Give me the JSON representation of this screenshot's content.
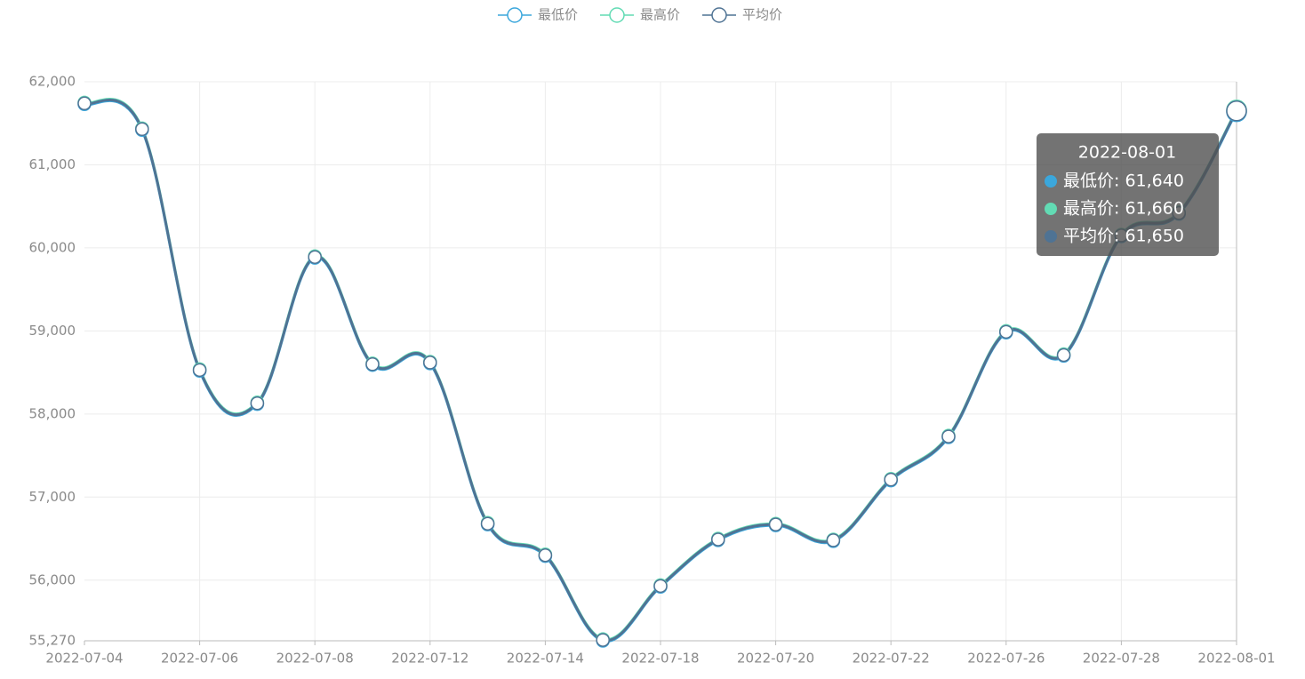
{
  "chart_data": {
    "type": "line",
    "categories": [
      "2022-07-04",
      null,
      "2022-07-06",
      null,
      "2022-07-08",
      null,
      "2022-07-12",
      null,
      "2022-07-14",
      null,
      "2022-07-18",
      null,
      "2022-07-20",
      null,
      "2022-07-22",
      null,
      "2022-07-26",
      null,
      "2022-07-28",
      null,
      "2022-08-01"
    ],
    "series": [
      {
        "name": "最低价",
        "color": "#3ba7dc",
        "values": [
          61730,
          61420,
          58520,
          58120,
          59880,
          58590,
          58610,
          56670,
          56290,
          55270,
          55920,
          56480,
          56660,
          56470,
          57200,
          57720,
          58980,
          58700,
          60140,
          60410,
          61640
        ]
      },
      {
        "name": "最高价",
        "color": "#62dbb4",
        "values": [
          61750,
          61440,
          58540,
          58140,
          59900,
          58610,
          58630,
          56690,
          56310,
          55290,
          55940,
          56500,
          56680,
          56490,
          57220,
          57740,
          59000,
          58720,
          60160,
          60430,
          61660
        ]
      },
      {
        "name": "平均价",
        "color": "#4f7394",
        "values": [
          61740,
          61430,
          58530,
          58130,
          59890,
          58600,
          58620,
          56680,
          56300,
          55280,
          55930,
          56490,
          56670,
          56480,
          57210,
          57730,
          58990,
          58710,
          60150,
          60420,
          61650
        ]
      }
    ],
    "ylim": [
      55270,
      62000
    ],
    "yticks": [
      {
        "value": 55270,
        "label": "55,270"
      },
      {
        "value": 56000,
        "label": "56,000"
      },
      {
        "value": 57000,
        "label": "57,000"
      },
      {
        "value": 58000,
        "label": "58,000"
      },
      {
        "value": 59000,
        "label": "59,000"
      },
      {
        "value": 60000,
        "label": "60,000"
      },
      {
        "value": 61000,
        "label": "61,000"
      },
      {
        "value": 62000,
        "label": "62,000"
      }
    ],
    "grid": true,
    "smooth": true,
    "tooltip": {
      "title": "2022-08-01",
      "rows": [
        "最低价: 61,640",
        "最高价: 61,660",
        "平均价: 61,650"
      ]
    }
  }
}
